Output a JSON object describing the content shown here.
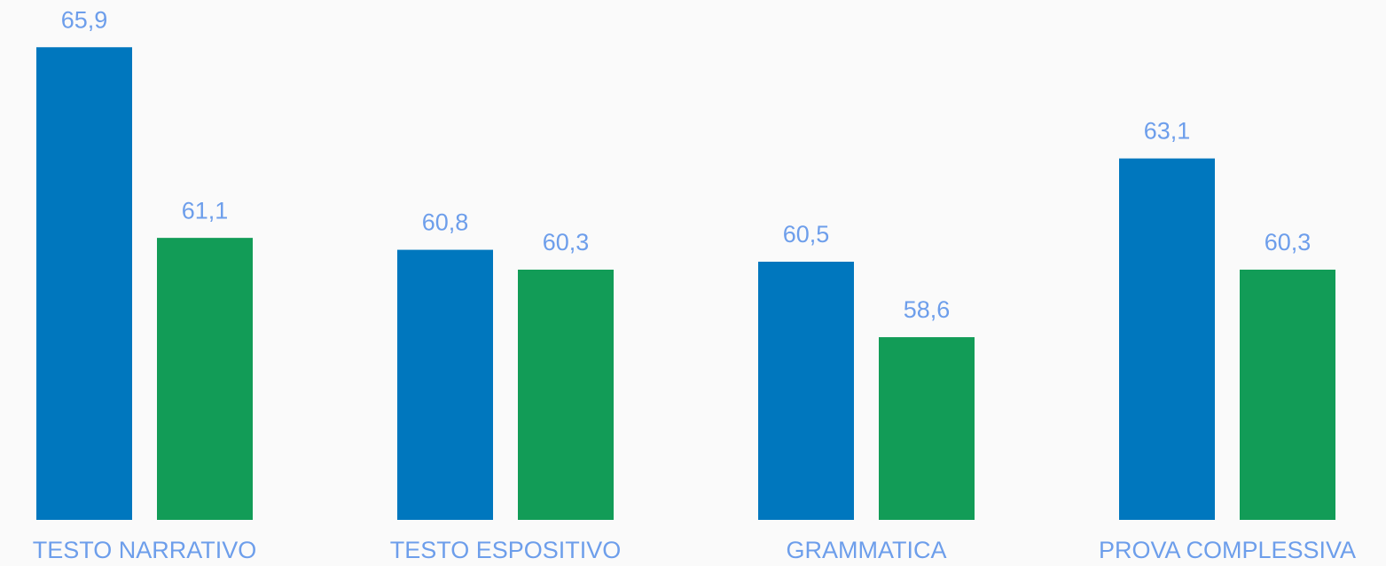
{
  "chart_data": {
    "type": "bar",
    "categories": [
      "TESTO NARRATIVO",
      "TESTO ESPOSITIVO",
      "GRAMMATICA",
      "PROVA COMPLESSIVA"
    ],
    "series": [
      {
        "color": "#0077be",
        "values": [
          65.9,
          60.8,
          60.5,
          63.1
        ],
        "value_labels": [
          "65,9",
          "60,8",
          "60,5",
          "63,1"
        ]
      },
      {
        "color": "#129c57",
        "values": [
          61.1,
          60.3,
          58.6,
          60.3
        ],
        "value_labels": [
          "61,1",
          "60,3",
          "58,6",
          "60,3"
        ]
      }
    ],
    "ylim": [
      54,
      67
    ]
  }
}
